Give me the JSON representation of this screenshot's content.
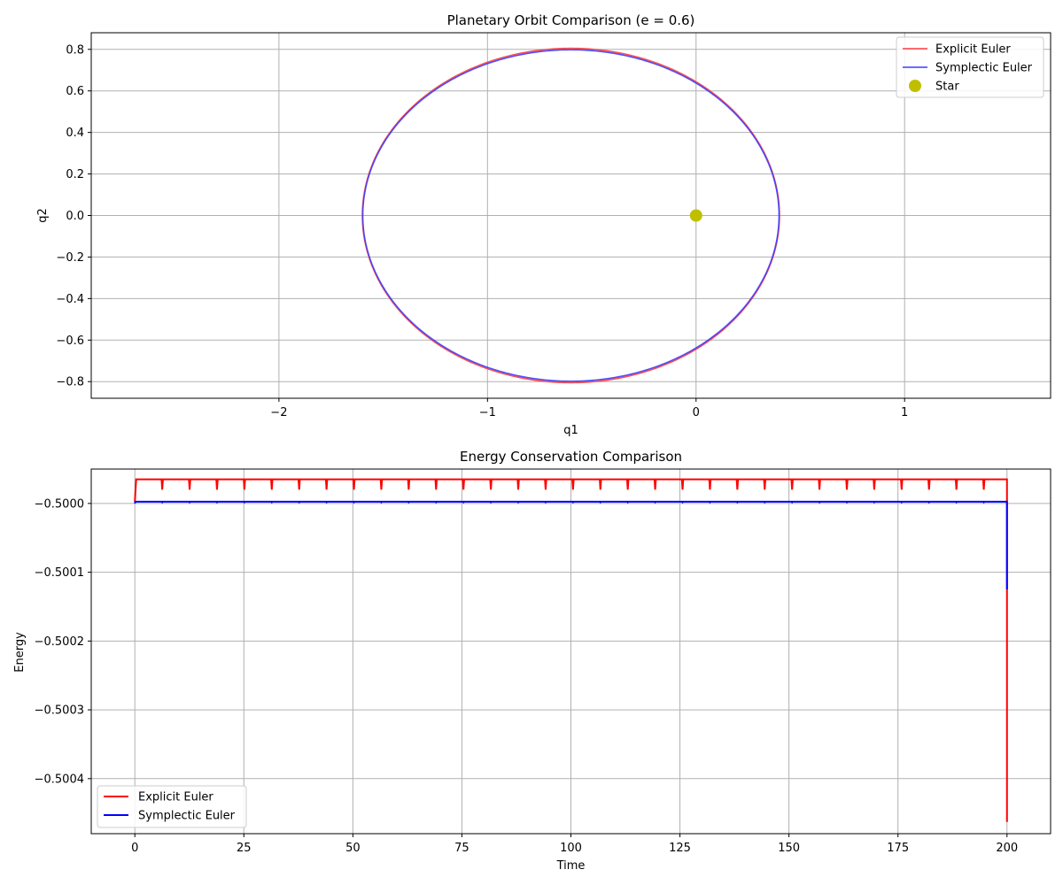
{
  "chart_data": [
    {
      "type": "line",
      "title": "Planetary Orbit Comparison (e = 0.6)",
      "xlabel": "q1",
      "ylabel": "q2",
      "xlim": [
        -2.9,
        1.7
      ],
      "ylim": [
        -0.88,
        0.88
      ],
      "xticks": [
        -2,
        -1,
        0,
        1
      ],
      "xtick_labels": [
        "−2",
        "−1",
        "0",
        "1"
      ],
      "yticks": [
        0.8,
        0.6,
        0.4,
        0.2,
        0.0,
        -0.2,
        -0.4,
        -0.6,
        -0.8
      ],
      "ytick_labels": [
        "0.8",
        "0.6",
        "0.4",
        "0.2",
        "0.0",
        "−0.2",
        "−0.4",
        "−0.6",
        "−0.8"
      ],
      "grid": true,
      "legend_position": "top-right",
      "series": [
        {
          "name": "Explicit Euler",
          "kind": "ellipse",
          "color": "#ff3b3b",
          "center": [
            -0.6,
            0.0
          ],
          "semi_axes": [
            1.0,
            0.805
          ]
        },
        {
          "name": "Symplectic Euler",
          "kind": "ellipse",
          "color": "#3b3bff",
          "center": [
            -0.6,
            0.0
          ],
          "semi_axes": [
            0.998,
            0.798
          ]
        },
        {
          "name": "Star",
          "kind": "point",
          "color": "#bfbf00",
          "x": 0.0,
          "y": 0.0
        }
      ]
    },
    {
      "type": "line",
      "title": "Energy Conservation Comparison",
      "xlabel": "Time",
      "ylabel": "Energy",
      "xlim": [
        -10,
        210
      ],
      "ylim": [
        -0.50048,
        -0.49995
      ],
      "xticks": [
        0,
        25,
        50,
        75,
        100,
        125,
        150,
        175,
        200
      ],
      "xtick_labels": [
        "0",
        "25",
        "50",
        "75",
        "100",
        "125",
        "150",
        "175",
        "200"
      ],
      "yticks": [
        -0.5,
        -0.5001,
        -0.5002,
        -0.5003,
        -0.5004
      ],
      "ytick_labels": [
        "−0.5000",
        "−0.5001",
        "−0.5002",
        "−0.5003",
        "−0.5004"
      ],
      "grid": true,
      "legend_position": "bottom-left",
      "series": [
        {
          "name": "Explicit Euler",
          "color": "#ff0000",
          "baseline": -0.499965,
          "dip": -0.49998,
          "period": 6.28,
          "start": -0.4999975,
          "end_drop": -0.500463
        },
        {
          "name": "Symplectic Euler",
          "color": "#0000ff",
          "baseline": -0.4999975,
          "period": 6.28,
          "start": -0.5,
          "end_drop": -0.500125
        }
      ]
    }
  ]
}
